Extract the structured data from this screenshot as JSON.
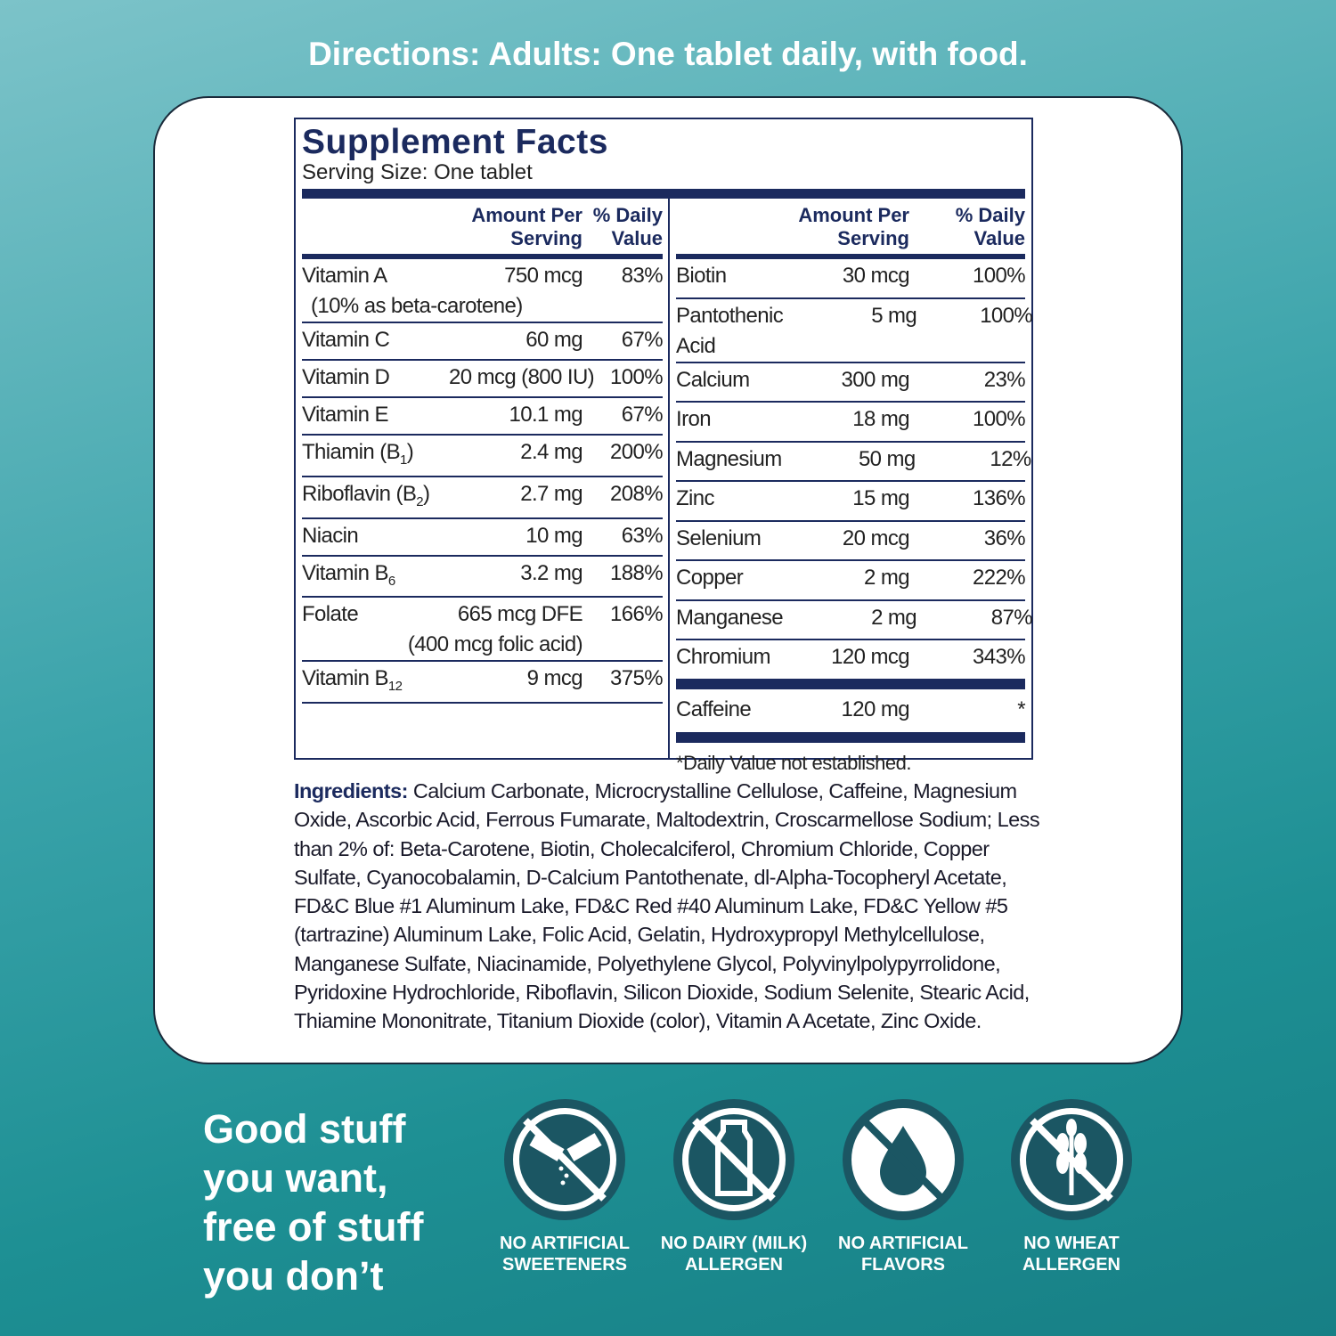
{
  "directions": "Directions: Adults: One tablet daily, with food.",
  "facts": {
    "title": "Supplement Facts",
    "serving_size": "Serving Size: One tablet",
    "header_amount": "Amount Per Serving",
    "header_dv": "% Daily Value",
    "left_rows": [
      {
        "name": "Vitamin A",
        "amount": "750 mcg",
        "dv": "83%",
        "note": "(10% as beta-carotene)"
      },
      {
        "name": "Vitamin C",
        "amount": "60 mg",
        "dv": "67%"
      },
      {
        "name": "Vitamin D",
        "amount": "20 mcg (800 IU)",
        "dv": "100%"
      },
      {
        "name": "Vitamin E",
        "amount": "10.1 mg",
        "dv": "67%"
      },
      {
        "name": "Thiamin (B",
        "name_sub": "1",
        "name_end": ")",
        "amount": "2.4 mg",
        "dv": "200%"
      },
      {
        "name": "Riboflavin (B",
        "name_sub": "2",
        "name_end": ")",
        "amount": "2.7 mg",
        "dv": "208%"
      },
      {
        "name": "Niacin",
        "amount": "10 mg",
        "dv": "63%"
      },
      {
        "name": "Vitamin B",
        "name_sub": "6",
        "amount": "3.2 mg",
        "dv": "188%"
      },
      {
        "name": "Folate",
        "amount": "665 mcg DFE",
        "dv": "166%",
        "amount_note": "(400 mcg folic acid)"
      },
      {
        "name": "Vitamin B",
        "name_sub": "12",
        "amount": "9 mcg",
        "dv": "375%"
      }
    ],
    "right_rows": [
      {
        "name": "Biotin",
        "amount": "30 mcg",
        "dv": "100%"
      },
      {
        "name": "Pantothenic Acid",
        "amount": "5 mg",
        "dv": "100%"
      },
      {
        "name": "Calcium",
        "amount": "300 mg",
        "dv": "23%"
      },
      {
        "name": "Iron",
        "amount": "18 mg",
        "dv": "100%"
      },
      {
        "name": "Magnesium",
        "amount": "50 mg",
        "dv": "12%"
      },
      {
        "name": "Zinc",
        "amount": "15 mg",
        "dv": "136%"
      },
      {
        "name": "Selenium",
        "amount": "20 mcg",
        "dv": "36%"
      },
      {
        "name": "Copper",
        "amount": "2 mg",
        "dv": "222%"
      },
      {
        "name": "Manganese",
        "amount": "2 mg",
        "dv": "87%"
      },
      {
        "name": "Chromium",
        "amount": "120 mcg",
        "dv": "343%"
      }
    ],
    "caffeine": {
      "name": "Caffeine",
      "amount": "120 mg",
      "dv": "*"
    },
    "footnote": "*Daily Value not established."
  },
  "ingredients": {
    "label": "Ingredients:",
    "text": "Calcium Carbonate, Microcrystalline Cellulose, Caffeine, Magnesium Oxide, Ascorbic Acid, Ferrous Fumarate, Maltodextrin, Croscarmellose Sodium; Less than 2% of: Beta-Carotene, Biotin, Cholecalciferol, Chromium Chloride, Copper Sulfate, Cyanocobalamin, D-Calcium Pantothenate, dl-Alpha-Tocopheryl Acetate, FD&C Blue #1 Aluminum Lake, FD&C Red #40 Aluminum Lake, FD&C Yellow #5 (tartrazine) Aluminum Lake, Folic Acid, Gelatin, Hydroxypropyl Methylcellulose, Manganese Sulfate, Niacinamide, Polyethylene Glycol, Polyvinylpolypyrrolidone, Pyridoxine Hydrochloride, Riboflavin, Silicon Dioxide, Sodium Selenite, Stearic Acid, Thiamine Mononitrate, Titanium Dioxide (color), Vitamin A Acetate, Zinc Oxide."
  },
  "tagline": "Good stuff you want, free of stuff you don’t",
  "badges": [
    "NO ARTIFICIAL SWEETENERS",
    "NO DAIRY (MILK) ALLERGEN",
    "NO ARTIFICIAL FLAVORS",
    "NO WHEAT ALLERGEN"
  ]
}
